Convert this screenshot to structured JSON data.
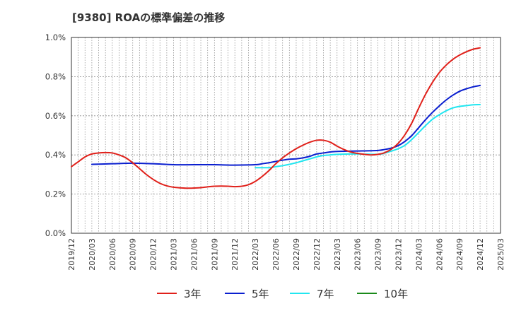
{
  "chart_data": {
    "type": "line",
    "title": "[9380]  ROAの標準偏差の推移",
    "xlabel": "",
    "ylabel": "",
    "ylim": [
      0,
      1.0
    ],
    "y_ticks": [
      "0.0%",
      "0.2%",
      "0.4%",
      "0.6%",
      "0.8%",
      "1.0%"
    ],
    "x_ticks": [
      "2019/12",
      "2020/03",
      "2020/06",
      "2020/09",
      "2020/12",
      "2021/03",
      "2021/06",
      "2021/09",
      "2021/12",
      "2022/03",
      "2022/06",
      "2022/09",
      "2022/12",
      "2023/03",
      "2023/06",
      "2023/09",
      "2023/12",
      "2024/03",
      "2024/06",
      "2024/09",
      "2024/12",
      "2025/03"
    ],
    "grid": true,
    "legend_position": "bottom",
    "series": [
      {
        "name": "3年",
        "color": "#e0201a",
        "points": [
          [
            "2019/12",
            0.34
          ],
          [
            "2020/01",
            0.365
          ],
          [
            "2020/02",
            0.39
          ],
          [
            "2020/03",
            0.405
          ],
          [
            "2020/04",
            0.41
          ],
          [
            "2020/05",
            0.412
          ],
          [
            "2020/06",
            0.41
          ],
          [
            "2020/07",
            0.4
          ],
          [
            "2020/08",
            0.385
          ],
          [
            "2020/09",
            0.36
          ],
          [
            "2020/10",
            0.33
          ],
          [
            "2020/11",
            0.3
          ],
          [
            "2020/12",
            0.275
          ],
          [
            "2021/01",
            0.255
          ],
          [
            "2021/02",
            0.242
          ],
          [
            "2021/03",
            0.235
          ],
          [
            "2021/04",
            0.232
          ],
          [
            "2021/05",
            0.23
          ],
          [
            "2021/06",
            0.231
          ],
          [
            "2021/07",
            0.233
          ],
          [
            "2021/08",
            0.237
          ],
          [
            "2021/09",
            0.24
          ],
          [
            "2021/10",
            0.241
          ],
          [
            "2021/11",
            0.24
          ],
          [
            "2021/12",
            0.238
          ],
          [
            "2022/01",
            0.24
          ],
          [
            "2022/02",
            0.248
          ],
          [
            "2022/03",
            0.265
          ],
          [
            "2022/04",
            0.29
          ],
          [
            "2022/05",
            0.32
          ],
          [
            "2022/06",
            0.355
          ],
          [
            "2022/07",
            0.385
          ],
          [
            "2022/08",
            0.41
          ],
          [
            "2022/09",
            0.432
          ],
          [
            "2022/10",
            0.45
          ],
          [
            "2022/11",
            0.465
          ],
          [
            "2022/12",
            0.475
          ],
          [
            "2023/01",
            0.475
          ],
          [
            "2023/02",
            0.465
          ],
          [
            "2023/03",
            0.445
          ],
          [
            "2023/04",
            0.428
          ],
          [
            "2023/05",
            0.415
          ],
          [
            "2023/06",
            0.408
          ],
          [
            "2023/07",
            0.403
          ],
          [
            "2023/08",
            0.4
          ],
          [
            "2023/09",
            0.403
          ],
          [
            "2023/10",
            0.412
          ],
          [
            "2023/11",
            0.43
          ],
          [
            "2023/12",
            0.46
          ],
          [
            "2024/01",
            0.505
          ],
          [
            "2024/02",
            0.565
          ],
          [
            "2024/03",
            0.64
          ],
          [
            "2024/04",
            0.71
          ],
          [
            "2024/05",
            0.77
          ],
          [
            "2024/06",
            0.82
          ],
          [
            "2024/07",
            0.858
          ],
          [
            "2024/08",
            0.888
          ],
          [
            "2024/09",
            0.91
          ],
          [
            "2024/10",
            0.927
          ],
          [
            "2024/11",
            0.94
          ],
          [
            "2024/12",
            0.947
          ]
        ]
      },
      {
        "name": "5年",
        "color": "#0a1fcf",
        "points": [
          [
            "2020/03",
            0.352
          ],
          [
            "2020/06",
            0.355
          ],
          [
            "2020/09",
            0.358
          ],
          [
            "2020/12",
            0.355
          ],
          [
            "2021/03",
            0.35
          ],
          [
            "2021/06",
            0.35
          ],
          [
            "2021/09",
            0.35
          ],
          [
            "2021/12",
            0.348
          ],
          [
            "2022/03",
            0.35
          ],
          [
            "2022/04",
            0.355
          ],
          [
            "2022/05",
            0.36
          ],
          [
            "2022/06",
            0.367
          ],
          [
            "2022/07",
            0.373
          ],
          [
            "2022/08",
            0.378
          ],
          [
            "2022/09",
            0.38
          ],
          [
            "2022/10",
            0.385
          ],
          [
            "2022/11",
            0.393
          ],
          [
            "2022/12",
            0.405
          ],
          [
            "2023/01",
            0.41
          ],
          [
            "2023/02",
            0.415
          ],
          [
            "2023/03",
            0.418
          ],
          [
            "2023/06",
            0.42
          ],
          [
            "2023/09",
            0.423
          ],
          [
            "2023/10",
            0.428
          ],
          [
            "2023/11",
            0.435
          ],
          [
            "2023/12",
            0.448
          ],
          [
            "2024/01",
            0.47
          ],
          [
            "2024/02",
            0.5
          ],
          [
            "2024/03",
            0.54
          ],
          [
            "2024/04",
            0.58
          ],
          [
            "2024/05",
            0.617
          ],
          [
            "2024/06",
            0.65
          ],
          [
            "2024/07",
            0.68
          ],
          [
            "2024/08",
            0.705
          ],
          [
            "2024/09",
            0.725
          ],
          [
            "2024/10",
            0.738
          ],
          [
            "2024/11",
            0.748
          ],
          [
            "2024/12",
            0.755
          ]
        ]
      },
      {
        "name": "7年",
        "color": "#22e6f0",
        "points": [
          [
            "2022/03",
            0.335
          ],
          [
            "2022/05",
            0.335
          ],
          [
            "2022/06",
            0.34
          ],
          [
            "2022/07",
            0.345
          ],
          [
            "2022/08",
            0.352
          ],
          [
            "2022/09",
            0.36
          ],
          [
            "2022/10",
            0.37
          ],
          [
            "2022/11",
            0.38
          ],
          [
            "2022/12",
            0.39
          ],
          [
            "2023/01",
            0.397
          ],
          [
            "2023/02",
            0.4
          ],
          [
            "2023/03",
            0.403
          ],
          [
            "2023/06",
            0.405
          ],
          [
            "2023/09",
            0.403
          ],
          [
            "2023/10",
            0.41
          ],
          [
            "2023/11",
            0.42
          ],
          [
            "2023/12",
            0.432
          ],
          [
            "2024/01",
            0.45
          ],
          [
            "2024/02",
            0.48
          ],
          [
            "2024/03",
            0.515
          ],
          [
            "2024/04",
            0.55
          ],
          [
            "2024/05",
            0.582
          ],
          [
            "2024/06",
            0.605
          ],
          [
            "2024/07",
            0.625
          ],
          [
            "2024/08",
            0.64
          ],
          [
            "2024/09",
            0.648
          ],
          [
            "2024/10",
            0.652
          ],
          [
            "2024/11",
            0.656
          ],
          [
            "2024/12",
            0.657
          ]
        ]
      },
      {
        "name": "10年",
        "color": "#1a8a1a",
        "points": []
      }
    ]
  }
}
